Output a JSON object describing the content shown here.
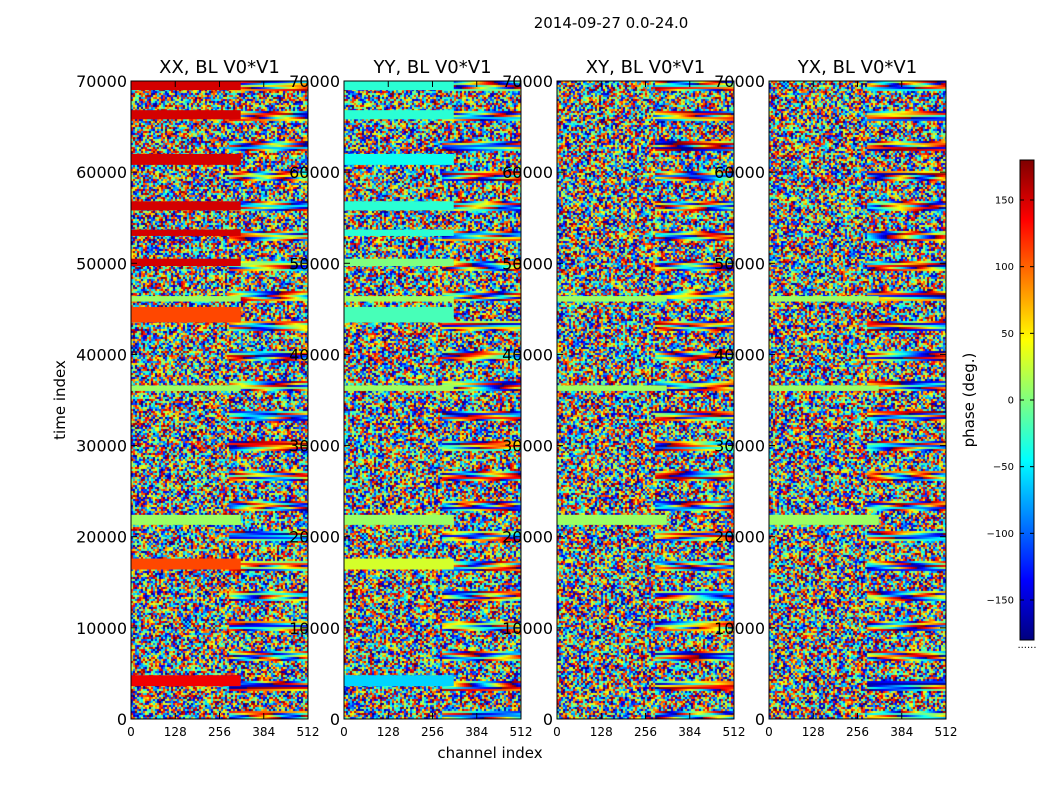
{
  "figure": {
    "suptitle": "2014-09-27 0.0-24.0",
    "xlabel": "channel index",
    "ylabel": "time index"
  },
  "colorbar": {
    "label": "phase (deg.)",
    "range": [
      -180,
      180
    ],
    "ticks": [
      150,
      100,
      50,
      0,
      -50,
      -100,
      -150
    ],
    "tick_labels": [
      "150",
      "100",
      "50",
      "0",
      "−50",
      "−100",
      "−150"
    ],
    "colormap": [
      "#00007f",
      "#0000ff",
      "#007fff",
      "#00ffff",
      "#7fff7f",
      "#ffff00",
      "#ff7f00",
      "#ff0000",
      "#7f0000"
    ],
    "footnote": "......"
  },
  "chart_data": [
    {
      "type": "heatmap",
      "title": "XX, BL V0*V1",
      "xlabel": "channel index",
      "ylabel": "time index",
      "xlim": [
        0,
        512
      ],
      "ylim": [
        0,
        70000
      ],
      "xticks": [
        0,
        128,
        256,
        384,
        512
      ],
      "yticks": [
        0,
        10000,
        20000,
        30000,
        40000,
        50000,
        60000,
        70000
      ],
      "value": "phase (deg.)",
      "coherent_bands": [
        {
          "time_start": 3600,
          "time_end": 4800,
          "phase": 140
        },
        {
          "time_start": 16400,
          "time_end": 17600,
          "phase": 110
        },
        {
          "time_start": 21300,
          "time_end": 22400,
          "phase": 10
        },
        {
          "time_start": 36000,
          "time_end": 36600,
          "phase": 10
        },
        {
          "time_start": 43500,
          "time_end": 45200,
          "phase": 110
        },
        {
          "time_start": 45800,
          "time_end": 46400,
          "phase": 10
        },
        {
          "time_start": 49700,
          "time_end": 50500,
          "phase": 150
        },
        {
          "time_start": 53000,
          "time_end": 53700,
          "phase": 150
        },
        {
          "time_start": 55800,
          "time_end": 56800,
          "phase": 150
        },
        {
          "time_start": 60800,
          "time_end": 62000,
          "phase": 150
        },
        {
          "time_start": 65800,
          "time_end": 66800,
          "phase": 150
        },
        {
          "time_start": 69000,
          "time_end": 70000,
          "phase": 150
        }
      ]
    },
    {
      "type": "heatmap",
      "title": "YY, BL V0*V1",
      "xlabel": "channel index",
      "ylabel": "time index",
      "xlim": [
        0,
        512
      ],
      "ylim": [
        0,
        70000
      ],
      "xticks": [
        0,
        128,
        256,
        384,
        512
      ],
      "yticks": [
        0,
        10000,
        20000,
        30000,
        40000,
        50000,
        60000,
        70000
      ],
      "value": "phase (deg.)",
      "coherent_bands": [
        {
          "time_start": 3600,
          "time_end": 4800,
          "phase": -60
        },
        {
          "time_start": 16400,
          "time_end": 17600,
          "phase": 30
        },
        {
          "time_start": 21300,
          "time_end": 22400,
          "phase": 10
        },
        {
          "time_start": 36000,
          "time_end": 36600,
          "phase": 10
        },
        {
          "time_start": 43500,
          "time_end": 45200,
          "phase": -20
        },
        {
          "time_start": 45800,
          "time_end": 46400,
          "phase": 10
        },
        {
          "time_start": 49700,
          "time_end": 50500,
          "phase": 0
        },
        {
          "time_start": 53000,
          "time_end": 53700,
          "phase": -30
        },
        {
          "time_start": 55800,
          "time_end": 56800,
          "phase": -30
        },
        {
          "time_start": 60800,
          "time_end": 62000,
          "phase": -40
        },
        {
          "time_start": 65800,
          "time_end": 66800,
          "phase": -30
        },
        {
          "time_start": 69000,
          "time_end": 70000,
          "phase": -30
        }
      ]
    },
    {
      "type": "heatmap",
      "title": "XY, BL V0*V1",
      "xlabel": "channel index",
      "ylabel": "time index",
      "xlim": [
        0,
        512
      ],
      "ylim": [
        0,
        70000
      ],
      "xticks": [
        0,
        128,
        256,
        384,
        512
      ],
      "yticks": [
        0,
        10000,
        20000,
        30000,
        40000,
        50000,
        60000,
        70000
      ],
      "value": "phase (deg.)",
      "coherent_bands": [
        {
          "time_start": 21300,
          "time_end": 22400,
          "phase": 10
        },
        {
          "time_start": 36000,
          "time_end": 36600,
          "phase": 10
        },
        {
          "time_start": 45800,
          "time_end": 46400,
          "phase": 10
        }
      ]
    },
    {
      "type": "heatmap",
      "title": "YX, BL V0*V1",
      "xlabel": "channel index",
      "ylabel": "time index",
      "xlim": [
        0,
        512
      ],
      "ylim": [
        0,
        70000
      ],
      "xticks": [
        0,
        128,
        256,
        384,
        512
      ],
      "yticks": [
        0,
        10000,
        20000,
        30000,
        40000,
        50000,
        60000,
        70000
      ],
      "value": "phase (deg.)",
      "coherent_bands": [
        {
          "time_start": 21300,
          "time_end": 22400,
          "phase": 10
        },
        {
          "time_start": 36000,
          "time_end": 36600,
          "phase": 10
        },
        {
          "time_start": 45800,
          "time_end": 46400,
          "phase": 10
        }
      ]
    }
  ]
}
